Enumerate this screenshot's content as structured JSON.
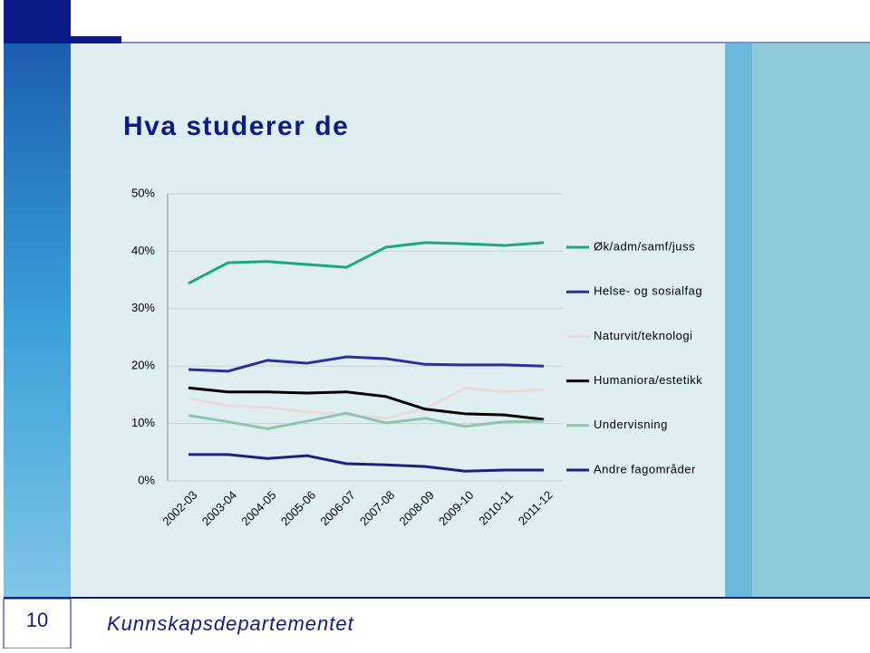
{
  "chart_data": {
    "type": "line",
    "title": "Hva studerer de",
    "categories": [
      "2002-03",
      "2003-04",
      "2004-05",
      "2005-06",
      "2006-07",
      "2007-08",
      "2008-09",
      "2009-10",
      "2010-11",
      "2011-12"
    ],
    "series": [
      {
        "name": "Øk/adm/samf/juss",
        "color": "#1aa882",
        "values": [
          34.4,
          38.0,
          38.2,
          37.7,
          37.2,
          40.7,
          41.5,
          41.3,
          41.0,
          41.5
        ]
      },
      {
        "name": "Helse- og sosialfag",
        "color": "#2a2fa0",
        "values": [
          19.4,
          19.1,
          21.0,
          20.5,
          21.6,
          21.3,
          20.3,
          20.2,
          20.2,
          20.0
        ]
      },
      {
        "name": "Naturvit/teknologi",
        "color": "#e6dcdc",
        "values": [
          14.4,
          13.1,
          12.8,
          12.0,
          11.5,
          10.9,
          12.6,
          16.1,
          15.6,
          15.9
        ]
      },
      {
        "name": "Humaniora/estetikk",
        "color": "#000000",
        "values": [
          16.2,
          15.5,
          15.5,
          15.3,
          15.5,
          14.7,
          12.5,
          11.7,
          11.5,
          10.7
        ]
      },
      {
        "name": "Undervisning",
        "color": "#8fc4b0",
        "values": [
          11.4,
          10.3,
          9.1,
          10.4,
          11.8,
          10.1,
          10.9,
          9.5,
          10.3,
          10.4
        ]
      },
      {
        "name": "Andre fagområder",
        "color": "#1a1f80",
        "values": [
          4.6,
          4.6,
          3.9,
          4.4,
          3.0,
          2.8,
          2.5,
          1.7,
          1.9,
          1.9
        ]
      }
    ],
    "ylim": [
      0,
      50
    ],
    "yticks": [
      {
        "value": 0,
        "label": "0%"
      },
      {
        "value": 10,
        "label": "10%"
      },
      {
        "value": 20,
        "label": "20%"
      },
      {
        "value": 30,
        "label": "30%"
      },
      {
        "value": 40,
        "label": "40%"
      },
      {
        "value": 50,
        "label": "50%"
      }
    ],
    "grid": true,
    "legend": "right"
  },
  "slide": {
    "page_number": "10",
    "footer": "Kunnskapsdepartementet"
  }
}
